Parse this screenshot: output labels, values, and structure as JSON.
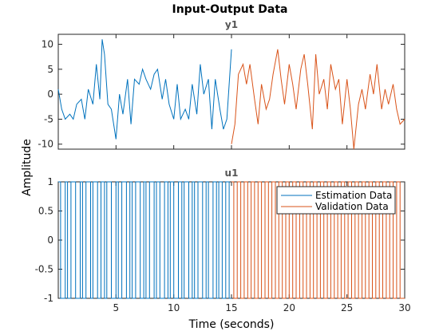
{
  "colors": {
    "estimation": "#0072BD",
    "validation": "#D95319",
    "axis": "#262626",
    "grid": "#e6e6e6"
  },
  "chart_data": [
    {
      "type": "line",
      "title": "Input-Output Data",
      "subtitle": "y1",
      "ylabel": "Amplitude",
      "xlim": [
        0,
        30
      ],
      "ylim": [
        -11,
        12
      ],
      "yticks": [
        -10,
        -5,
        0,
        5,
        10
      ],
      "grid": false,
      "series": [
        {
          "name": "Estimation Data",
          "x": [
            0,
            0.3,
            0.6,
            1.0,
            1.3,
            1.6,
            2.0,
            2.3,
            2.6,
            3.0,
            3.3,
            3.6,
            3.8,
            4.0,
            4.3,
            4.6,
            5.0,
            5.3,
            5.6,
            6.0,
            6.3,
            6.6,
            7.0,
            7.3,
            7.6,
            8.0,
            8.3,
            8.6,
            9.0,
            9.3,
            9.6,
            10.0,
            10.3,
            10.6,
            11.0,
            11.3,
            11.6,
            12.0,
            12.3,
            12.6,
            13.0,
            13.3,
            13.6,
            14.0,
            14.3,
            14.6,
            15.0
          ],
          "y": [
            1,
            -3,
            -5,
            -4,
            -5,
            -2,
            -1,
            -5,
            1,
            -2,
            6,
            -1,
            11,
            8,
            -2,
            -3,
            -9,
            0,
            -4,
            3,
            -6,
            3,
            2,
            5,
            3,
            1,
            4,
            5,
            -1,
            3,
            -2,
            -5,
            2,
            -5,
            -3,
            -5,
            2,
            -4,
            6,
            0,
            3,
            -7,
            3,
            -3,
            -7,
            -5,
            9
          ]
        },
        {
          "name": "Validation Data",
          "x": [
            15.0,
            15.3,
            15.6,
            16.0,
            16.3,
            16.6,
            17.0,
            17.3,
            17.6,
            18.0,
            18.3,
            18.6,
            19.0,
            19.3,
            19.6,
            20.0,
            20.3,
            20.6,
            21.0,
            21.3,
            21.6,
            22.0,
            22.3,
            22.6,
            23.0,
            23.3,
            23.6,
            24.0,
            24.3,
            24.6,
            25.0,
            25.3,
            25.6,
            26.0,
            26.3,
            26.6,
            27.0,
            27.3,
            27.6,
            28.0,
            28.3,
            28.6,
            29.0,
            29.3,
            29.6,
            30.0
          ],
          "y": [
            -10,
            -6,
            4,
            6,
            2,
            6,
            -1,
            -6,
            2,
            -3,
            -1,
            4,
            9,
            3,
            -2,
            6,
            2,
            -3,
            5,
            8,
            2,
            -7,
            8,
            0,
            3,
            -3,
            6,
            1,
            3,
            -6,
            3,
            -3,
            -11,
            -2,
            1,
            -3,
            4,
            0,
            6,
            -3,
            1,
            -2,
            2,
            -3,
            -6,
            -5
          ]
        }
      ]
    },
    {
      "type": "line",
      "subtitle": "u1",
      "xlabel": "Time (seconds)",
      "xlim": [
        0,
        30
      ],
      "ylim": [
        -1,
        1
      ],
      "yticks": [
        -1,
        -0.5,
        0,
        0.5,
        1
      ],
      "xticks": [
        5,
        10,
        15,
        20,
        25,
        30
      ],
      "grid": false,
      "legend": "top-right",
      "signal": "binary random (+1/-1)",
      "series": [
        {
          "name": "Estimation Data",
          "switch_times": [
            0.2,
            0.6,
            0.8,
            1.1,
            1.5,
            1.9,
            2.1,
            2.4,
            2.8,
            3.0,
            3.4,
            3.7,
            4.0,
            4.2,
            4.6,
            5.0,
            5.2,
            5.5,
            5.9,
            6.2,
            6.4,
            6.7,
            7.1,
            7.4,
            7.6,
            7.9,
            8.3,
            8.5,
            8.8,
            9.2,
            9.5,
            9.7,
            10.0,
            10.4,
            10.7,
            10.9,
            11.3,
            11.6,
            11.8,
            12.1,
            12.5,
            12.8,
            13.0,
            13.4,
            13.7,
            13.9,
            14.2,
            14.5,
            14.8
          ]
        },
        {
          "name": "Validation Data",
          "switch_times": [
            15.2,
            15.5,
            15.8,
            16.1,
            16.4,
            16.7,
            17.0,
            17.3,
            17.6,
            17.9,
            18.2,
            18.5,
            18.8,
            19.1,
            19.4,
            19.7,
            20.0,
            20.3,
            20.6,
            20.9,
            21.2,
            21.5,
            21.8,
            22.1,
            22.4,
            22.7,
            23.0,
            23.3,
            23.6,
            23.9,
            24.2,
            24.5,
            24.8,
            25.1,
            25.4,
            25.7,
            26.0,
            26.3,
            26.6,
            26.9,
            27.2,
            27.5,
            27.8,
            28.1,
            28.4,
            28.7,
            29.0,
            29.3,
            29.6
          ]
        }
      ]
    }
  ]
}
